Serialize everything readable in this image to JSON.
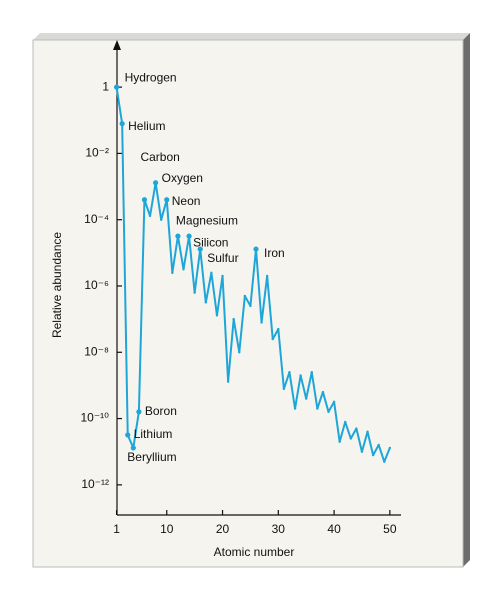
{
  "chart_data": {
    "type": "line",
    "x_label": "Atomic number",
    "y_label": "Relative abundance",
    "log_scale_y": true,
    "color": "#1ea6d8",
    "x": [
      1,
      2,
      3,
      4,
      5,
      6,
      7,
      8,
      9,
      10,
      11,
      12,
      13,
      14,
      15,
      16,
      17,
      18,
      19,
      20,
      21,
      22,
      23,
      24,
      25,
      26,
      27,
      28,
      29,
      30,
      31,
      32,
      33,
      34,
      35,
      36,
      37,
      38,
      39,
      40,
      41,
      42,
      43,
      44,
      45,
      46,
      47,
      48,
      49,
      50
    ],
    "values": [
      1,
      0.079,
      3.2e-11,
      1.3e-11,
      1.6e-10,
      0.0004,
      0.00013,
      0.0013,
      0.0001,
      0.0004,
      2.5e-06,
      3.2e-05,
      3.2e-06,
      3.2e-05,
      6.3e-07,
      1.3e-05,
      3.2e-07,
      2.5e-06,
      1.3e-07,
      2e-06,
      1.3e-09,
      1e-07,
      1e-08,
      5e-07,
      2.5e-07,
      1.3e-05,
      7.9e-08,
      2e-06,
      2.5e-08,
      5e-08,
      7.9e-10,
      2.5e-09,
      2e-10,
      2e-09,
      4e-10,
      2.5e-09,
      2e-10,
      6.3e-10,
      1.6e-10,
      3.2e-10,
      2e-11,
      7.9e-11,
      2.5e-11,
      5e-11,
      1e-11,
      4e-11,
      7.9e-12,
      1.6e-11,
      5e-12,
      1.3e-11
    ],
    "labels": [
      "Hydrogen",
      "Helium",
      "Lithium",
      "Beryllium",
      "Boron",
      "Carbon",
      null,
      "Oxygen",
      null,
      "Neon",
      null,
      "Magnesium",
      null,
      "Silicon",
      null,
      "Sulfur",
      null,
      null,
      null,
      null,
      null,
      null,
      null,
      null,
      null,
      "Iron",
      null,
      null,
      null,
      null,
      null,
      null,
      null,
      null,
      null,
      null,
      null,
      null,
      null,
      null,
      null,
      null,
      null,
      null,
      null,
      null,
      null,
      null,
      null,
      null
    ],
    "xlim": [
      0,
      52
    ],
    "xticks": [
      1,
      10,
      20,
      30,
      40,
      50
    ],
    "ylim": [
      1e-13,
      20
    ],
    "yticks": [
      1,
      {
        "value": 0.01,
        "label": "10⁻²"
      },
      {
        "value": 0.0001,
        "label": "10⁻⁴"
      },
      {
        "value": 1e-06,
        "label": "10⁻⁶"
      },
      {
        "value": 1e-08,
        "label": "10⁻⁸"
      },
      {
        "value": 1e-10,
        "label": "10⁻¹⁰"
      },
      {
        "value": 1e-12,
        "label": "10⁻¹²"
      }
    ]
  }
}
